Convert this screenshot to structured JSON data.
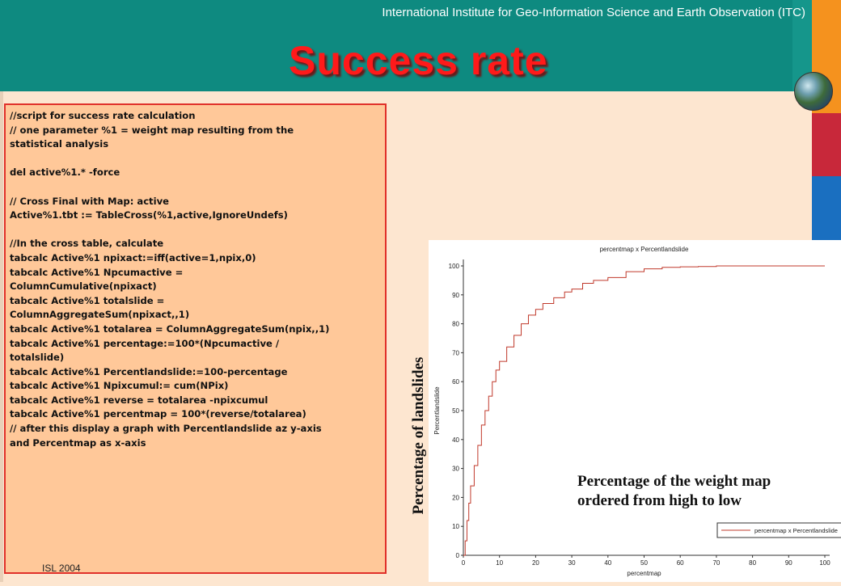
{
  "header": {
    "institute": "International Institute for Geo-Information Science and Earth Observation (ITC)",
    "title": "Success rate"
  },
  "code": {
    "lines": [
      "//script for success rate calculation",
      "// one parameter %1 = weight map resulting from the",
      "statistical analysis",
      "",
      "del active%1.* -force",
      "",
      "// Cross Final with Map: active",
      "Active%1.tbt := TableCross(%1,active,IgnoreUndefs)",
      "",
      "//In the cross table, calculate",
      "tabcalc Active%1 npixact:=iff(active=1,npix,0)",
      "tabcalc Active%1 Npcumactive =",
      "ColumnCumulative(npixact)",
      "tabcalc Active%1 totalslide =",
      "ColumnAggregateSum(npixact,,1)",
      "tabcalc Active%1 totalarea = ColumnAggregateSum(npix,,1)",
      "tabcalc Active%1 percentage:=100*(Npcumactive  /",
      "totalslide)",
      "tabcalc Active%1 Percentlandslide:=100-percentage",
      "tabcalc Active%1 Npixcumul:=  cum(NPix)",
      "tabcalc Active%1 reverse = totalarea -npixcumul",
      "tabcalc Active%1 percentmap = 100*(reverse/totalarea)",
      "// after this display a graph with Percentlandslide az y-axis",
      "and Percentmap as x-axis"
    ]
  },
  "footer": {
    "text": "ISL 2004"
  },
  "annotations": {
    "y_label": "Percentage of landslides",
    "caption_line1": "Percentage of the weight map",
    "caption_line2": "ordered from high to low"
  },
  "colors": {
    "header": "#0e8a80",
    "title": "#ff1a1a",
    "side_orange": "#f5921e",
    "side_red": "#c8283a",
    "side_blue": "#1a6fc0",
    "code_bg": "#ffc899",
    "code_border": "#e0302a",
    "series": "#c0392b"
  },
  "chart_data": {
    "type": "line",
    "title": "percentmap x Percentlandslide",
    "xlabel": "percentmap",
    "ylabel": "Percentlandslide",
    "xlim": [
      0,
      100
    ],
    "ylim": [
      0,
      100
    ],
    "xticks": [
      0,
      10,
      20,
      30,
      40,
      50,
      60,
      70,
      80,
      90,
      100
    ],
    "yticks": [
      0,
      10,
      20,
      30,
      40,
      50,
      60,
      70,
      80,
      90,
      100
    ],
    "grid": false,
    "legend_position": "bottom-right",
    "series": [
      {
        "name": "percentmap x Percentlandslide",
        "x": [
          0,
          0.5,
          1,
          1.5,
          2,
          3,
          4,
          5,
          6,
          7,
          8,
          9,
          10,
          12,
          14,
          16,
          18,
          20,
          22,
          25,
          28,
          30,
          33,
          36,
          40,
          45,
          50,
          55,
          60,
          65,
          70,
          80,
          90,
          100
        ],
        "y": [
          0,
          5,
          12,
          18,
          24,
          31,
          38,
          45,
          50,
          55,
          60,
          64,
          67,
          72,
          76,
          80,
          83,
          85,
          87,
          89,
          91,
          92,
          94,
          95,
          96,
          98,
          99,
          99.5,
          99.7,
          99.8,
          100,
          100,
          100,
          100
        ]
      }
    ]
  }
}
